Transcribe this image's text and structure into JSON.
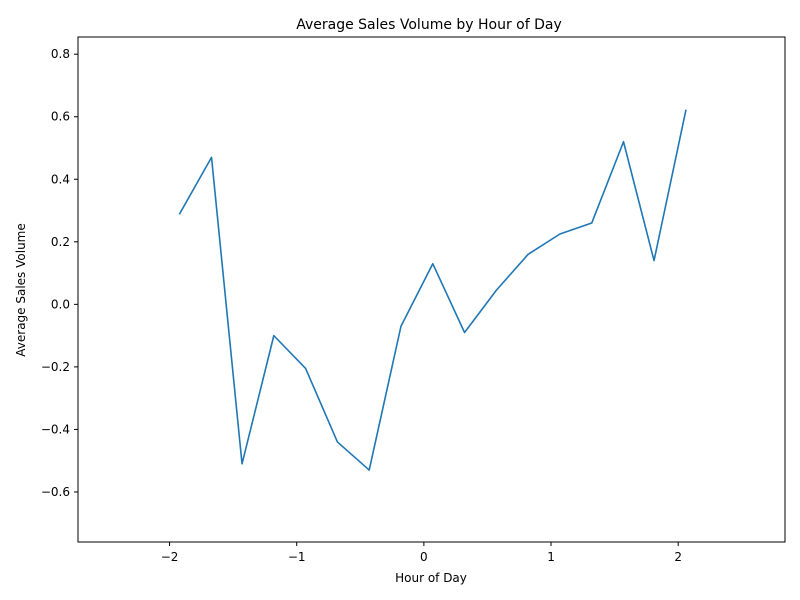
{
  "chart_data": {
    "type": "line",
    "title": "Average Sales Volume by Hour of Day",
    "xlabel": "Hour of Day",
    "ylabel": "Average Sales Volume",
    "xlim": [
      -2.72,
      2.84
    ],
    "ylim": [
      -0.76,
      0.855
    ],
    "x_ticks": [
      -2,
      -1,
      0,
      1,
      2
    ],
    "x_tick_labels": [
      "−2",
      "−1",
      "0",
      "1",
      "2"
    ],
    "y_ticks": [
      -0.6,
      -0.4,
      -0.2,
      0.0,
      0.2,
      0.4,
      0.6,
      0.8
    ],
    "y_tick_labels": [
      "−0.6",
      "−0.4",
      "−0.2",
      "0.0",
      "0.2",
      "0.4",
      "0.6",
      "0.8"
    ],
    "grid": false,
    "series": [
      {
        "color": "#1f77b4",
        "x": [
          -1.92,
          -1.67,
          -1.43,
          -1.18,
          -0.93,
          -0.68,
          -0.43,
          -0.18,
          0.07,
          0.32,
          0.57,
          0.82,
          1.07,
          1.32,
          1.57,
          1.81,
          2.06
        ],
        "y": [
          0.29,
          0.47,
          -0.51,
          -0.1,
          -0.205,
          -0.44,
          -0.53,
          -0.07,
          0.13,
          -0.09,
          0.045,
          0.16,
          0.225,
          0.26,
          0.52,
          0.14,
          0.62
        ]
      }
    ]
  }
}
